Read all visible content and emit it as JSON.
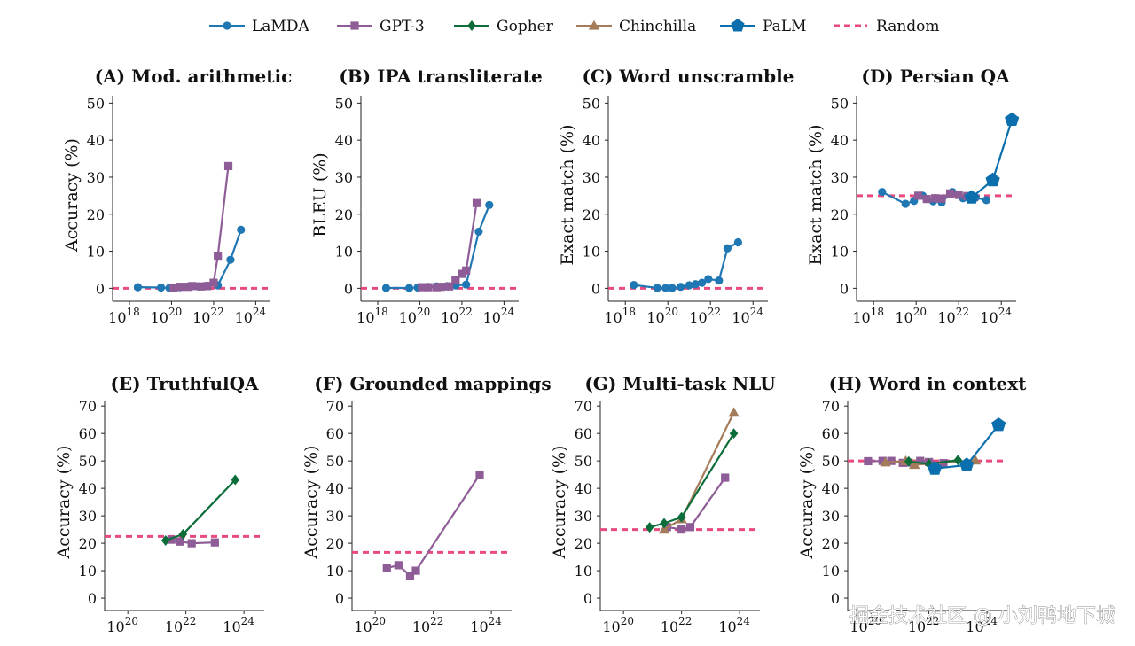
{
  "legend": [
    {
      "name": "LaMDA",
      "color": "#1f77b4",
      "marker": "circle"
    },
    {
      "name": "GPT-3",
      "color": "#8e5c96",
      "marker": "square"
    },
    {
      "name": "Gopher",
      "color": "#0b6e3a",
      "marker": "diamond"
    },
    {
      "name": "Chinchilla",
      "color": "#a57c5a",
      "marker": "triangle"
    },
    {
      "name": "PaLM",
      "color": "#0b6fae",
      "marker": "pentagon"
    },
    {
      "name": "Random",
      "color": "#e84a7f",
      "marker": "dashed-line"
    }
  ],
  "watermark": "掘金技术社区 @ 小刘鸭地下城",
  "chart_data": [
    {
      "type": "line",
      "title": "(A) Mod. arithmetic",
      "ylabel": "Accuracy (%)",
      "xscale": "log",
      "xlim": [
        17.2,
        24.7
      ],
      "xticks": [
        18,
        20,
        22,
        24
      ],
      "ylim": [
        -3.5,
        52
      ],
      "yticks": [
        0,
        10,
        20,
        30,
        40,
        50
      ],
      "random": 0,
      "series": [
        {
          "name": "LaMDA",
          "x": [
            18.4,
            19.5,
            19.9,
            20.4,
            20.8,
            21.3,
            21.7,
            22.2,
            22.8,
            23.3
          ],
          "y": [
            0.3,
            0.2,
            0.1,
            0.3,
            0.5,
            0.5,
            0.7,
            0.8,
            7.7,
            15.8
          ]
        },
        {
          "name": "GPT-3",
          "x": [
            20.1,
            20.4,
            20.8,
            21.0,
            21.4,
            21.7,
            22.0,
            22.2,
            22.7
          ],
          "y": [
            0.2,
            0.4,
            0.4,
            0.6,
            0.5,
            0.6,
            1.5,
            8.8,
            33
          ]
        }
      ]
    },
    {
      "type": "line",
      "title": "(B) IPA transliterate",
      "ylabel": "BLEU (%)",
      "xscale": "log",
      "xlim": [
        17.2,
        24.7
      ],
      "xticks": [
        18,
        20,
        22,
        24
      ],
      "ylim": [
        -3.5,
        52
      ],
      "yticks": [
        0,
        10,
        20,
        30,
        40,
        50
      ],
      "random": 0,
      "series": [
        {
          "name": "LaMDA",
          "x": [
            18.4,
            19.5,
            19.9,
            20.4,
            20.8,
            21.3,
            21.7,
            22.2,
            22.8,
            23.3
          ],
          "y": [
            0.1,
            0.1,
            0.2,
            0.4,
            0.5,
            0.6,
            0.8,
            1.0,
            15.3,
            22.5
          ]
        },
        {
          "name": "GPT-3",
          "x": [
            20.1,
            20.4,
            20.8,
            21.0,
            21.4,
            21.7,
            22.0,
            22.2,
            22.7
          ],
          "y": [
            0.3,
            0.3,
            0.3,
            0.4,
            0.5,
            2.3,
            3.9,
            4.8,
            23
          ]
        }
      ]
    },
    {
      "type": "line",
      "title": "(C) Word unscramble",
      "ylabel": "Exact match (%)",
      "xscale": "log",
      "xlim": [
        17.2,
        24.7
      ],
      "xticks": [
        18,
        20,
        22,
        24
      ],
      "ylim": [
        -3.5,
        52
      ],
      "yticks": [
        0,
        10,
        20,
        30,
        40,
        50
      ],
      "random": 0,
      "series": [
        {
          "name": "LaMDA",
          "x": [
            18.4,
            19.5,
            19.9,
            20.2,
            20.6,
            21.0,
            21.3,
            21.6,
            21.9,
            22.4,
            22.8,
            23.3
          ],
          "y": [
            0.9,
            0.1,
            0.1,
            0.1,
            0.4,
            0.8,
            1.1,
            1.5,
            2.5,
            2.1,
            10.8,
            12.4
          ]
        }
      ]
    },
    {
      "type": "line",
      "title": "(D) Persian QA",
      "ylabel": "Exact match (%)",
      "xscale": "log",
      "xlim": [
        17.2,
        24.7
      ],
      "xticks": [
        18,
        20,
        22,
        24
      ],
      "ylim": [
        -3.5,
        52
      ],
      "yticks": [
        0,
        10,
        20,
        30,
        40,
        50
      ],
      "random": 25,
      "series": [
        {
          "name": "LaMDA",
          "x": [
            18.4,
            19.5,
            19.9,
            20.3,
            20.8,
            21.2,
            21.7,
            22.2,
            22.8,
            23.3
          ],
          "y": [
            26,
            22.8,
            23.6,
            25,
            23.5,
            23.2,
            26,
            24.3,
            24.5,
            23.8
          ]
        },
        {
          "name": "GPT-3",
          "x": [
            20.1,
            20.5,
            20.9,
            21.2,
            21.6,
            22.0,
            22.4,
            22.7
          ],
          "y": [
            25,
            24.1,
            24.3,
            24.2,
            25.6,
            25.2,
            24.9,
            24.6
          ]
        },
        {
          "name": "PaLM",
          "x": [
            22.6,
            23.6,
            24.5
          ],
          "y": [
            24.5,
            29.2,
            45.5
          ]
        }
      ]
    },
    {
      "type": "line",
      "title": "(E) TruthfulQA",
      "ylabel": "Accuracy (%)",
      "xscale": "log",
      "xlim": [
        19.2,
        24.7
      ],
      "xticks": [
        20,
        22,
        24
      ],
      "ylim": [
        -4.5,
        72
      ],
      "yticks": [
        0,
        10,
        20,
        30,
        40,
        50,
        60,
        70
      ],
      "random": 22.5,
      "series": [
        {
          "name": "GPT-3",
          "x": [
            21.5,
            21.8,
            22.2,
            23.0
          ],
          "y": [
            21.3,
            20.6,
            20.0,
            20.3
          ]
        },
        {
          "name": "Gopher",
          "x": [
            21.3,
            21.9,
            23.7
          ],
          "y": [
            21.0,
            23.3,
            43.1
          ]
        }
      ]
    },
    {
      "type": "line",
      "title": "(F) Grounded mappings",
      "ylabel": "Accuracy (%)",
      "xscale": "log",
      "xlim": [
        19.2,
        24.7
      ],
      "xticks": [
        20,
        22,
        24
      ],
      "ylim": [
        -4.5,
        72
      ],
      "yticks": [
        0,
        10,
        20,
        30,
        40,
        50,
        60,
        70
      ],
      "random": 16.7,
      "series": [
        {
          "name": "GPT-3",
          "x": [
            20.4,
            20.8,
            21.2,
            21.4,
            23.6
          ],
          "y": [
            11.0,
            12.0,
            8.2,
            10.0,
            45.0
          ]
        }
      ]
    },
    {
      "type": "line",
      "title": "(G) Multi-task NLU",
      "ylabel": "Accuracy (%)",
      "xscale": "log",
      "xlim": [
        19.2,
        24.7
      ],
      "xticks": [
        20,
        22,
        24
      ],
      "ylim": [
        -4.5,
        72
      ],
      "yticks": [
        0,
        10,
        20,
        30,
        40,
        50,
        60,
        70
      ],
      "random": 25,
      "series": [
        {
          "name": "GPT-3",
          "x": [
            21.5,
            22.0,
            22.3,
            23.5
          ],
          "y": [
            25.9,
            25.0,
            25.9,
            43.9
          ]
        },
        {
          "name": "Chinchilla",
          "x": [
            21.4,
            22.0,
            23.8
          ],
          "y": [
            25.0,
            28.8,
            67.6
          ]
        },
        {
          "name": "Gopher",
          "x": [
            20.9,
            21.4,
            22.0,
            23.8
          ],
          "y": [
            25.8,
            27.3,
            29.5,
            60.0
          ]
        }
      ]
    },
    {
      "type": "line",
      "title": "(H) Word in context",
      "ylabel": "Accuracy (%)",
      "xscale": "log",
      "xlim": [
        19.2,
        24.7
      ],
      "xticks": [
        20,
        22,
        24
      ],
      "ylim": [
        -4.5,
        72
      ],
      "yticks": [
        0,
        10,
        20,
        30,
        40,
        50,
        60,
        70
      ],
      "random": 50,
      "series": [
        {
          "name": "GPT-3",
          "x": [
            19.9,
            20.4,
            20.7,
            21.1,
            21.3,
            21.7,
            22.0,
            22.5
          ],
          "y": [
            49.9,
            50.0,
            50.0,
            49.3,
            49.4,
            50.0,
            49.6,
            49.2
          ]
        },
        {
          "name": "Chinchilla",
          "x": [
            20.5,
            21.2,
            21.5,
            23.6
          ],
          "y": [
            49.5,
            50.0,
            48.6,
            50.2
          ]
        },
        {
          "name": "Gopher",
          "x": [
            21.3,
            22.0,
            23.0
          ],
          "y": [
            49.8,
            48.9,
            50.3
          ]
        },
        {
          "name": "PaLM",
          "x": [
            22.2,
            23.3,
            24.4
          ],
          "y": [
            47.2,
            48.5,
            63.1
          ]
        }
      ]
    }
  ]
}
